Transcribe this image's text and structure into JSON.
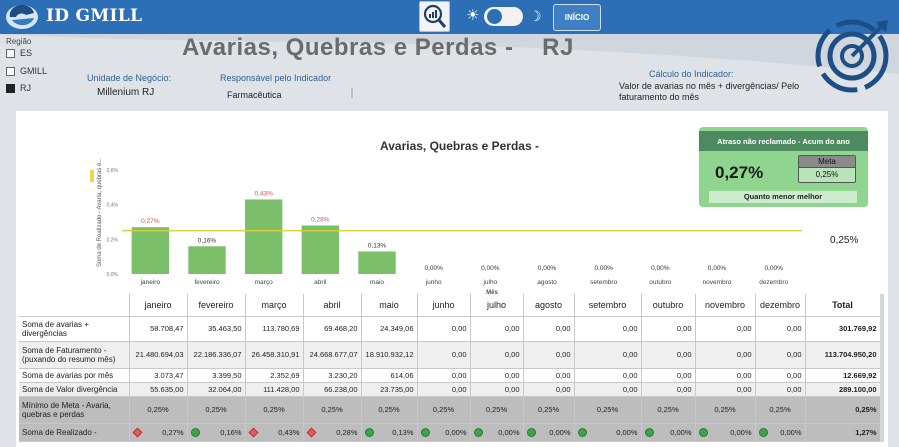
{
  "app": {
    "brand": "ID GMILL",
    "theme_sun": "☀",
    "theme_moon": "☽",
    "home_button": "INÍCIO"
  },
  "region": {
    "title": "Região",
    "options": [
      {
        "label": "ES",
        "selected": false
      },
      {
        "label": "GMILL",
        "selected": false
      },
      {
        "label": "RJ",
        "selected": true
      }
    ]
  },
  "header": {
    "title": "Avarias, Quebras e Perdas -    RJ",
    "business_unit_label": "Unidade de Negócio:",
    "business_unit_value": "Millenium RJ",
    "responsible_label": "Responsável pelo Indicador",
    "responsible_value": "Farmacêutica",
    "calc_label": "Cálculo do Indicador:",
    "calc_value": "Valor de avarias no mês + divergências/ Pelo faturamento do mês"
  },
  "chart_data": {
    "type": "bar",
    "title": "Avarias, Quebras e Perdas -",
    "xlabel": "Mês",
    "ylabel": "Soma de Realizado - Avaria, quebras e...",
    "categories": [
      "janeiro",
      "fevereiro",
      "março",
      "abril",
      "maio",
      "junho",
      "julho",
      "agosto",
      "setembro",
      "outubro",
      "novembro",
      "dezembro"
    ],
    "values": [
      0.27,
      0.16,
      0.43,
      0.28,
      0.13,
      0.0,
      0.0,
      0.0,
      0.0,
      0.0,
      0.0,
      0.0
    ],
    "data_labels": [
      "0,27%",
      "0,16%",
      "0,43%",
      "0,28%",
      "0,13%",
      "0,00%",
      "0,00%",
      "0,00%",
      "0,00%",
      "0,00%",
      "0,00%",
      "0,00%"
    ],
    "y_ticks": [
      "0,6%",
      "0,4%",
      "0,2%",
      "0,0%"
    ],
    "ylim": [
      0,
      0.6
    ],
    "target_line": 0.25,
    "target_label": "0,25%",
    "bar_color": "#7bbf6a",
    "target_color": "#d8cf3a",
    "label_color_above_target": "#d9534f",
    "label_color_below_target": "#333333"
  },
  "kpi": {
    "header": "Atraso não reclamado - Acum do ano",
    "value": "0,27%",
    "meta_label": "Meta",
    "meta_value": "0,25%",
    "footer": "Quanto menor melhor"
  },
  "table": {
    "columns": [
      "janeiro",
      "fevereiro",
      "março",
      "abril",
      "maio",
      "junho",
      "julho",
      "agosto",
      "setembro",
      "outubro",
      "novembro",
      "dezembro",
      "Total"
    ],
    "rows": [
      {
        "label": "Soma de avarias + divergências",
        "values": [
          "58.708,47",
          "35.463,50",
          "113.780,69",
          "69.468,20",
          "24.349,06",
          "0,00",
          "0,00",
          "0,00",
          "0,00",
          "0,00",
          "0,00",
          "0,00",
          "301.769,92"
        ]
      },
      {
        "label": "Soma de Faturamento - (puxando do resumo mês)",
        "values": [
          "21.480.694,03",
          "22.186.336,07",
          "26.458.310,91",
          "24.668.677,07",
          "18.910.932,12",
          "0,00",
          "0,00",
          "0,00",
          "0,00",
          "0,00",
          "0,00",
          "0,00",
          "113.704.950,20"
        ]
      },
      {
        "label": "Soma de avarias por mês",
        "values": [
          "3.073,47",
          "3.399,50",
          "2.352,69",
          "3.230,20",
          "614,06",
          "0,00",
          "0,00",
          "0,00",
          "0,00",
          "0,00",
          "0,00",
          "0,00",
          "12.669,92"
        ]
      },
      {
        "label": "Soma de Valor divergência",
        "values": [
          "55.635,00",
          "32.064,00",
          "111.428,00",
          "66.238,00",
          "23.735,00",
          "0,00",
          "0,00",
          "0,00",
          "0,00",
          "0,00",
          "0,00",
          "0,00",
          "289.100,00"
        ]
      },
      {
        "label": "Mínimo de Meta - Avaria, quebras e perdas",
        "values": [
          "0,25%",
          "0,25%",
          "0,25%",
          "0,25%",
          "0,25%",
          "0,25%",
          "0,25%",
          "0,25%",
          "0,25%",
          "0,25%",
          "0,25%",
          "0,25%",
          "0,25%"
        ]
      },
      {
        "label": "Soma de Realizado -",
        "values": [
          "0,27%",
          "0,16%",
          "0,43%",
          "0,28%",
          "0,13%",
          "0,00%",
          "0,00%",
          "0,00%",
          "0,00%",
          "0,00%",
          "0,00%",
          "0,00%",
          "1,27%"
        ],
        "status": [
          "bad",
          "good",
          "bad",
          "bad",
          "good",
          "good",
          "good",
          "good",
          "good",
          "good",
          "good",
          "good",
          ""
        ]
      }
    ]
  }
}
